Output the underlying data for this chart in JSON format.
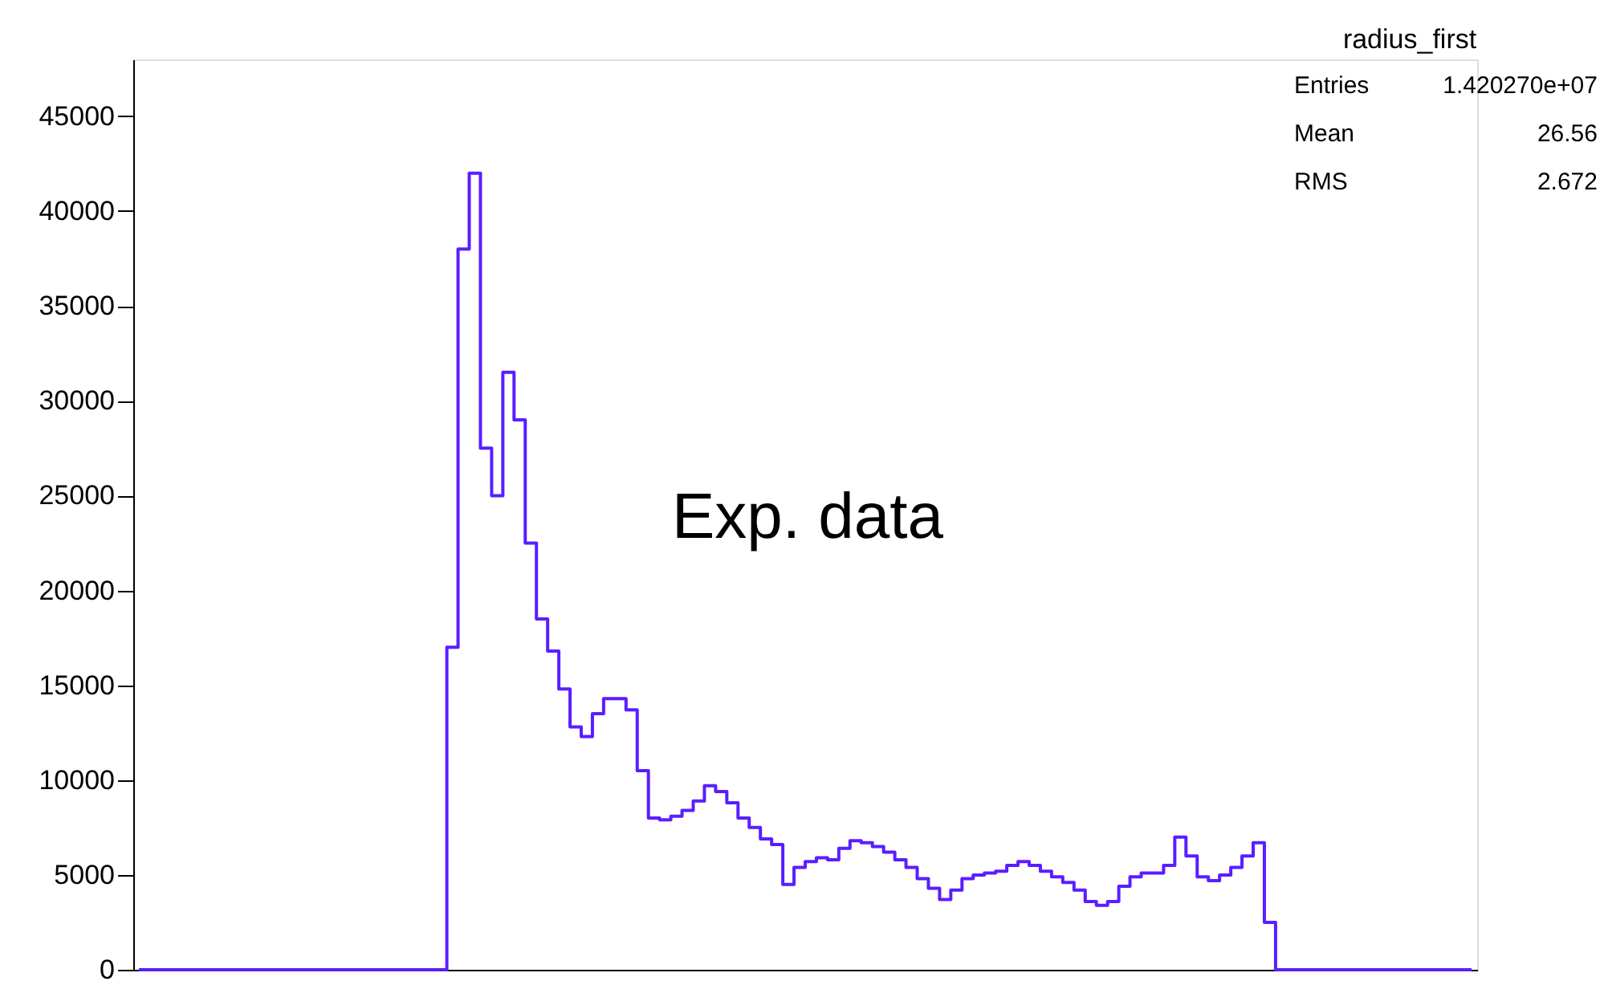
{
  "chart_data": {
    "type": "step",
    "categories": [
      null,
      null,
      null,
      null,
      null,
      null,
      null,
      null,
      null,
      null,
      null,
      null,
      null,
      null,
      null,
      null,
      null,
      null,
      null,
      null,
      null,
      null,
      null,
      null,
      null,
      null,
      null,
      null,
      null,
      null,
      null,
      null,
      null,
      null,
      null,
      null,
      null,
      null,
      null,
      null,
      null,
      null,
      null,
      null,
      null,
      null,
      null,
      null,
      null,
      null,
      null,
      null,
      null,
      null,
      null,
      null,
      null,
      null,
      null,
      null,
      null,
      null,
      null,
      null,
      null,
      null,
      null,
      null,
      null,
      null,
      null,
      null,
      null,
      null,
      null,
      null,
      null,
      null,
      null,
      null,
      null,
      null,
      null,
      null,
      null,
      null,
      null,
      null,
      null,
      null,
      null,
      null,
      null,
      null,
      null,
      null,
      null,
      null,
      null,
      null,
      null,
      null,
      null,
      null,
      null,
      null,
      null,
      null,
      null,
      null,
      null,
      null,
      null,
      null,
      null,
      null,
      null,
      null,
      null,
      null
    ],
    "series": [
      {
        "color": "#5a1eff",
        "values": [
          0,
          0,
          0,
          0,
          0,
          0,
          0,
          0,
          0,
          0,
          0,
          0,
          0,
          0,
          0,
          0,
          0,
          0,
          0,
          0,
          0,
          0,
          0,
          0,
          0,
          0,
          0,
          0,
          17000,
          38000,
          42000,
          27500,
          25000,
          31500,
          29000,
          22500,
          18500,
          16800,
          14800,
          12800,
          12300,
          13500,
          14300,
          14300,
          13700,
          10500,
          8000,
          7900,
          8100,
          8400,
          8900,
          9700,
          9400,
          8800,
          8000,
          7500,
          6900,
          6600,
          4500,
          5400,
          5700,
          5900,
          5800,
          6400,
          6800,
          6700,
          6500,
          6200,
          5800,
          5400,
          4800,
          4300,
          3700,
          4200,
          4800,
          5000,
          5100,
          5200,
          5500,
          5700,
          5500,
          5200,
          4900,
          4600,
          4200,
          3600,
          3400,
          3600,
          4400,
          4900,
          5100,
          5100,
          5500,
          7000,
          6000,
          4900,
          4700,
          5000,
          5400,
          6000,
          6700,
          2500,
          0,
          0,
          0,
          0,
          0,
          0,
          0,
          0,
          0,
          0,
          0,
          0,
          0,
          0,
          0,
          0,
          0,
          0
        ]
      }
    ],
    "ylim": [
      0,
      48000
    ],
    "yticks": [
      0,
      5000,
      10000,
      15000,
      20000,
      25000,
      30000,
      35000,
      40000,
      45000
    ],
    "grid": false,
    "tick_labels": "y",
    "annotations": [
      "radius_first",
      "Entries",
      "1.420270e+07",
      "Mean",
      "26.56",
      "RMS",
      "2.672",
      "Exp. data"
    ]
  }
}
